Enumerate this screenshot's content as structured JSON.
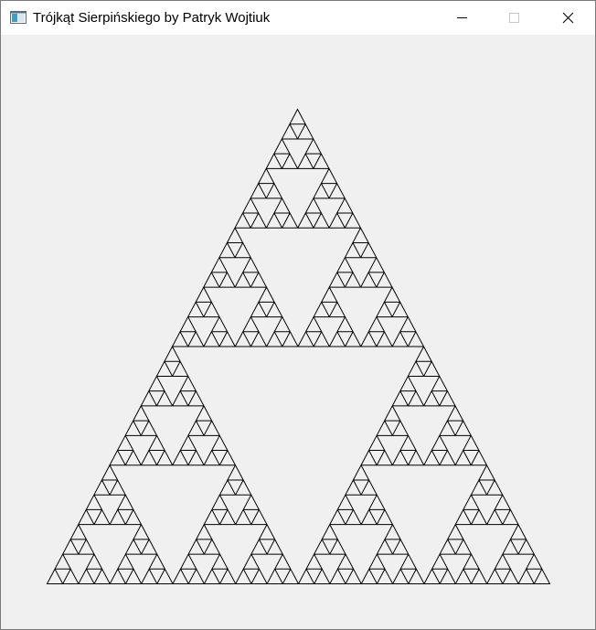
{
  "window": {
    "title": "Trójkąt Sierpińskiego by Patryk Wojtiuk",
    "icon": "app-window-icon",
    "controls": {
      "minimize_icon": "minimize-icon",
      "maximize_icon": "maximize-icon",
      "close_icon": "close-icon"
    }
  },
  "canvas": {
    "content": "sierpinski-triangle",
    "depth": 5,
    "stroke_color": "#000000",
    "background_color": "#f0f0f0"
  }
}
